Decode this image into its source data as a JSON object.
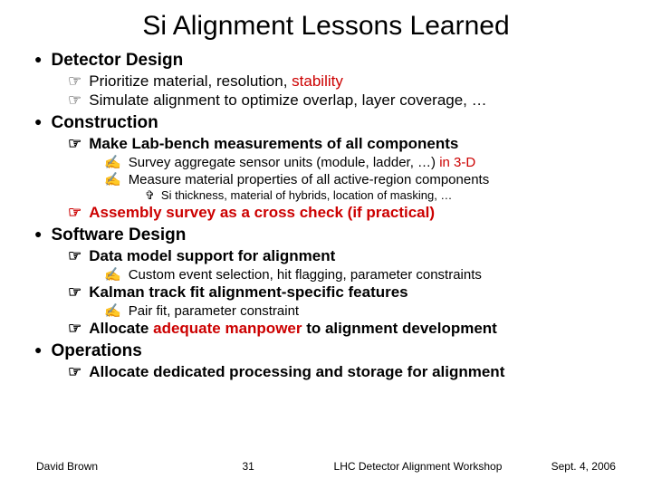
{
  "title": "Si Alignment Lessons Learned",
  "sections": {
    "s1": {
      "heading": "Detector Design",
      "b1": "Prioritize material, resolution, ",
      "b1_red": "stability",
      "b2": "Simulate alignment to optimize overlap, layer coverage, …"
    },
    "s2": {
      "heading": "Construction",
      "b1": "Make Lab-bench measurements of all components",
      "b1a": "Survey aggregate sensor units (module, ladder, …) ",
      "b1a_red": "in 3-D",
      "b1b": "Measure material properties of all active-region components",
      "b1b1": "Si thickness, material of hybrids, location of masking, …",
      "b2": "Assembly survey as a cross check (if practical)"
    },
    "s3": {
      "heading": "Software Design",
      "b1": "Data model support for alignment",
      "b1a": "Custom event selection, hit flagging, parameter constraints",
      "b2": "Kalman track fit alignment-specific features",
      "b2a": "Pair fit, parameter constraint",
      "b3_pre": "Allocate ",
      "b3_red": "adequate manpower",
      "b3_post": " to alignment development"
    },
    "s4": {
      "heading": "Operations",
      "b1": "Allocate dedicated processing and storage for alignment"
    }
  },
  "footer": {
    "author": "David Brown",
    "page": "31",
    "venue": "LHC Detector Alignment Workshop",
    "date": "Sept. 4, 2006"
  },
  "colors": {
    "text": "#000000",
    "highlight": "#cc0000",
    "background": "#ffffff"
  }
}
